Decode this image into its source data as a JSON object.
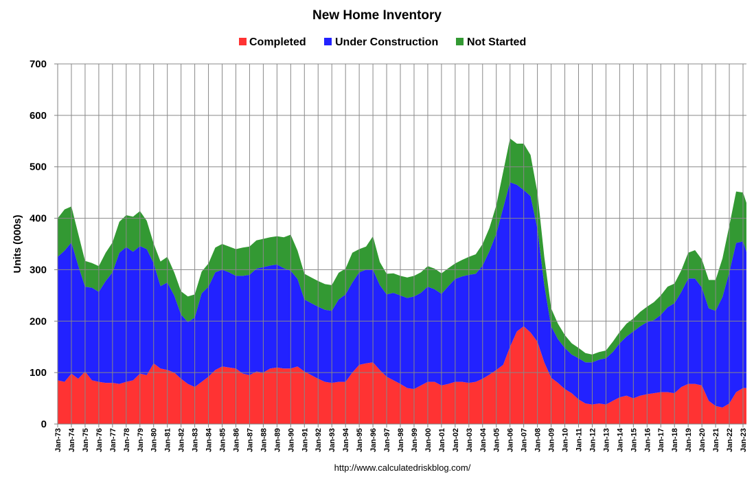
{
  "chart_data": {
    "type": "area",
    "stacked": true,
    "title": "New Home Inventory",
    "ylabel": "Units (000s)",
    "xlabel": "",
    "ylim": [
      0,
      700
    ],
    "yticks": [
      0,
      100,
      200,
      300,
      400,
      500,
      600,
      700
    ],
    "xlim": [
      1973,
      2023.25
    ],
    "xticks": [
      "Jan-73",
      "Jan-74",
      "Jan-75",
      "Jan-76",
      "Jan-77",
      "Jan-78",
      "Jan-79",
      "Jan-80",
      "Jan-81",
      "Jan-82",
      "Jan-83",
      "Jan-84",
      "Jan-85",
      "Jan-86",
      "Jan-87",
      "Jan-88",
      "Jan-89",
      "Jan-90",
      "Jan-91",
      "Jan-92",
      "Jan-93",
      "Jan-94",
      "Jan-95",
      "Jan-96",
      "Jan-97",
      "Jan-98",
      "Jan-99",
      "Jan-00",
      "Jan-01",
      "Jan-02",
      "Jan-03",
      "Jan-04",
      "Jan-05",
      "Jan-06",
      "Jan-07",
      "Jan-08",
      "Jan-09",
      "Jan-10",
      "Jan-11",
      "Jan-12",
      "Jan-13",
      "Jan-14",
      "Jan-15",
      "Jan-16",
      "Jan-17",
      "Jan-18",
      "Jan-19",
      "Jan-20",
      "Jan-21",
      "Jan-22",
      "Jan-23"
    ],
    "grid": true,
    "legend_position": "top-center",
    "source_text": "http://www.calculatedriskblog.com/",
    "x": [
      1973.0,
      1973.5,
      1974.0,
      1974.5,
      1975.0,
      1975.5,
      1976.0,
      1976.5,
      1977.0,
      1977.5,
      1978.0,
      1978.5,
      1979.0,
      1979.5,
      1980.0,
      1980.5,
      1981.0,
      1981.5,
      1982.0,
      1982.5,
      1983.0,
      1983.5,
      1984.0,
      1984.5,
      1985.0,
      1985.5,
      1986.0,
      1986.5,
      1987.0,
      1987.5,
      1988.0,
      1988.5,
      1989.0,
      1989.5,
      1990.0,
      1990.5,
      1991.0,
      1991.5,
      1992.0,
      1992.5,
      1993.0,
      1993.5,
      1994.0,
      1994.5,
      1995.0,
      1995.5,
      1996.0,
      1996.5,
      1997.0,
      1997.5,
      1998.0,
      1998.5,
      1999.0,
      1999.5,
      2000.0,
      2000.5,
      2001.0,
      2001.5,
      2002.0,
      2002.5,
      2003.0,
      2003.5,
      2004.0,
      2004.5,
      2005.0,
      2005.5,
      2006.0,
      2006.5,
      2007.0,
      2007.5,
      2008.0,
      2008.5,
      2009.0,
      2009.5,
      2010.0,
      2010.5,
      2011.0,
      2011.5,
      2012.0,
      2012.5,
      2013.0,
      2013.5,
      2014.0,
      2014.5,
      2015.0,
      2015.5,
      2016.0,
      2016.5,
      2017.0,
      2017.5,
      2018.0,
      2018.5,
      2019.0,
      2019.5,
      2020.0,
      2020.5,
      2021.0,
      2021.5,
      2022.0,
      2022.5,
      2023.0,
      2023.25
    ],
    "series": [
      {
        "name": "Completed",
        "color": "#ff3333",
        "values": [
          85,
          82,
          98,
          88,
          102,
          85,
          82,
          80,
          80,
          78,
          82,
          85,
          98,
          95,
          118,
          108,
          105,
          100,
          88,
          78,
          72,
          82,
          92,
          105,
          112,
          110,
          108,
          98,
          95,
          102,
          100,
          108,
          110,
          108,
          108,
          112,
          102,
          95,
          88,
          82,
          80,
          82,
          82,
          100,
          115,
          118,
          120,
          105,
          92,
          85,
          78,
          70,
          68,
          75,
          82,
          82,
          75,
          78,
          82,
          82,
          80,
          82,
          88,
          96,
          105,
          115,
          150,
          180,
          190,
          178,
          160,
          120,
          90,
          80,
          68,
          60,
          48,
          40,
          38,
          40,
          38,
          45,
          52,
          55,
          50,
          55,
          58,
          60,
          62,
          62,
          60,
          72,
          78,
          78,
          75,
          45,
          35,
          32,
          40,
          62,
          70,
          70
        ]
      },
      {
        "name": "Under Construction",
        "color": "#2222ff",
        "values": [
          240,
          255,
          255,
          220,
          165,
          180,
          175,
          198,
          215,
          255,
          262,
          250,
          248,
          245,
          195,
          160,
          170,
          150,
          125,
          120,
          135,
          172,
          175,
          190,
          188,
          185,
          180,
          190,
          195,
          200,
          205,
          200,
          200,
          195,
          190,
          170,
          140,
          140,
          140,
          140,
          140,
          160,
          170,
          175,
          180,
          182,
          180,
          165,
          160,
          170,
          172,
          175,
          180,
          180,
          185,
          180,
          178,
          190,
          200,
          205,
          210,
          210,
          220,
          240,
          265,
          305,
          320,
          285,
          265,
          265,
          220,
          150,
          100,
          85,
          80,
          75,
          80,
          80,
          82,
          85,
          90,
          95,
          105,
          115,
          130,
          135,
          140,
          142,
          150,
          165,
          175,
          185,
          205,
          205,
          190,
          180,
          185,
          215,
          255,
          290,
          285,
          265
        ]
      },
      {
        "name": "Not Started",
        "color": "#339933",
        "values": [
          75,
          80,
          70,
          62,
          50,
          48,
          50,
          55,
          58,
          60,
          62,
          68,
          68,
          55,
          38,
          48,
          50,
          45,
          45,
          50,
          45,
          42,
          45,
          48,
          50,
          50,
          52,
          55,
          55,
          55,
          55,
          55,
          55,
          60,
          70,
          55,
          50,
          50,
          50,
          50,
          50,
          52,
          50,
          58,
          45,
          45,
          65,
          45,
          40,
          38,
          38,
          40,
          40,
          40,
          40,
          40,
          40,
          35,
          30,
          32,
          35,
          38,
          42,
          45,
          55,
          70,
          85,
          80,
          90,
          80,
          70,
          55,
          35,
          30,
          25,
          22,
          20,
          18,
          15,
          15,
          15,
          20,
          22,
          25,
          25,
          28,
          30,
          35,
          38,
          40,
          38,
          42,
          50,
          55,
          55,
          55,
          60,
          75,
          90,
          100,
          95,
          95
        ]
      }
    ]
  }
}
